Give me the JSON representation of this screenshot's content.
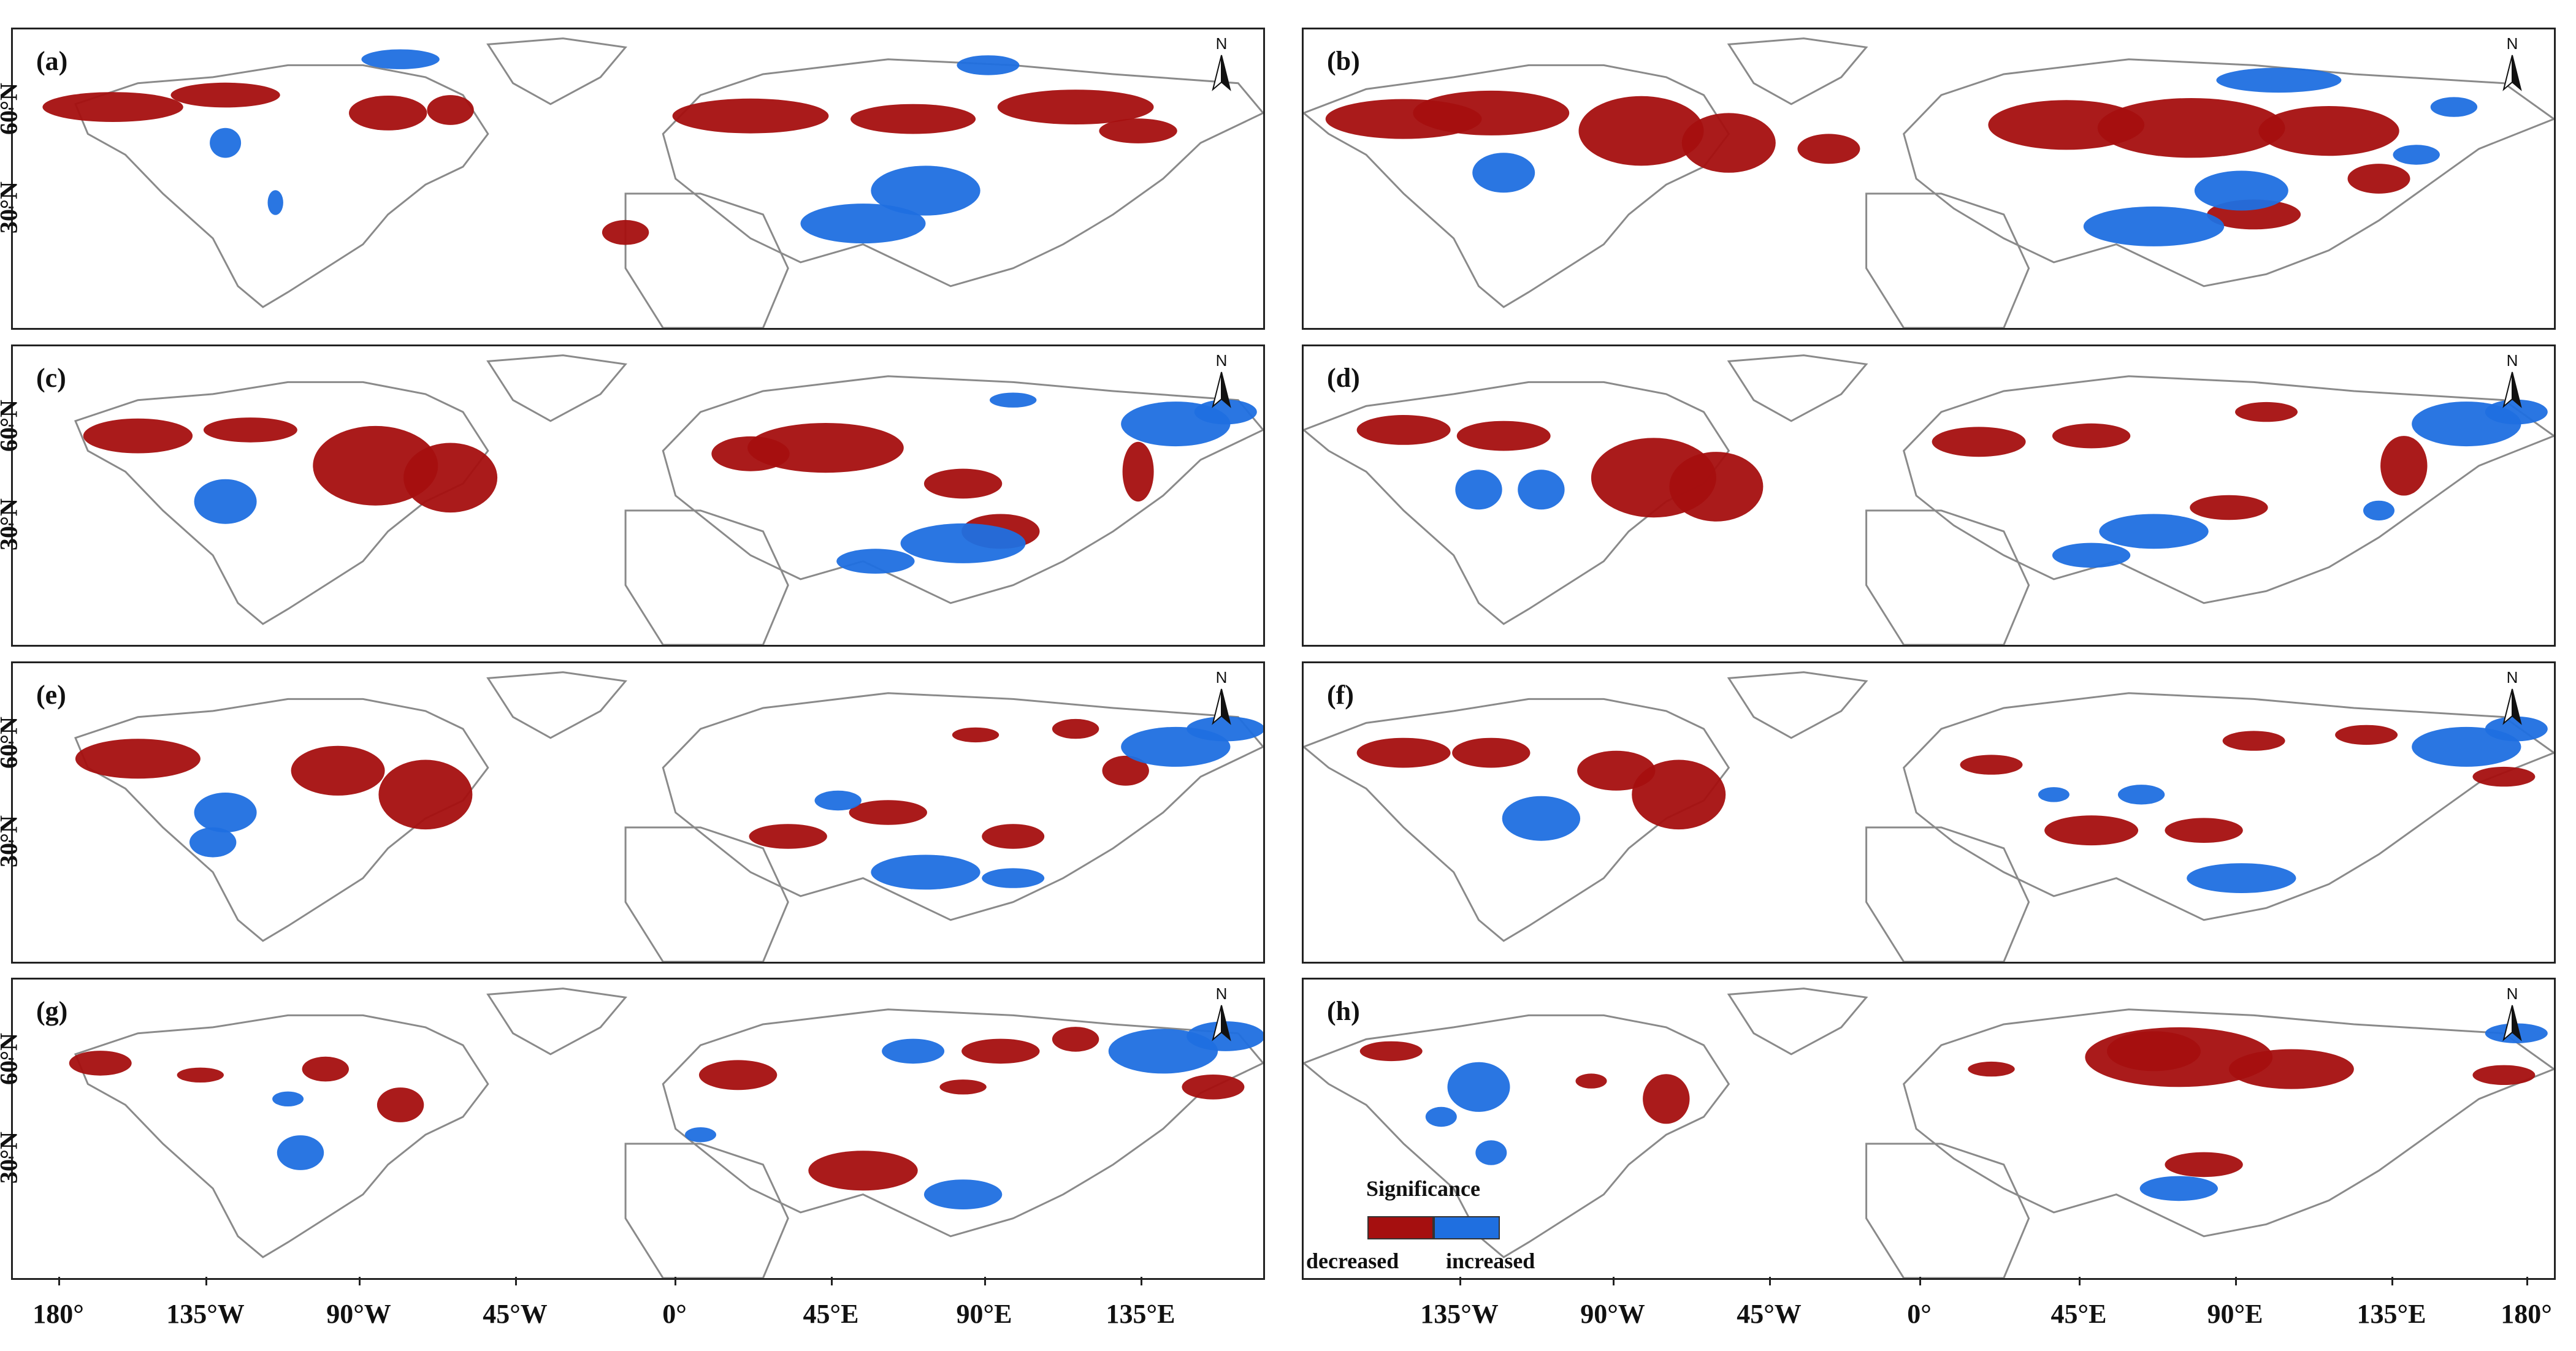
{
  "colors": {
    "decreased": "#a50f0f",
    "increased": "#1f6fe0",
    "coast": "#8a8a8a",
    "frame": "#222222"
  },
  "north_arrow": {
    "label": "N"
  },
  "y_axis_label": "60°N",
  "y_axis_labels": [
    "60°N",
    "30°N"
  ],
  "x_axis": {
    "left": [
      "180°",
      "135°W",
      "90°W",
      "45°W",
      "0°",
      "45°E",
      "90°E",
      "135°E"
    ],
    "right": [
      "135°W",
      "90°W",
      "45°W",
      "0°",
      "45°E",
      "90°E",
      "135°E",
      "180°"
    ]
  },
  "panels": [
    {
      "label": "(a)",
      "row": 0,
      "col": 0,
      "dec": [
        [
          0.08,
          0.26,
          0.09,
          0.06
        ],
        [
          0.17,
          0.22,
          0.07,
          0.05
        ],
        [
          0.3,
          0.28,
          0.05,
          0.07
        ],
        [
          0.35,
          0.27,
          0.03,
          0.06
        ],
        [
          0.59,
          0.29,
          0.1,
          0.07
        ],
        [
          0.72,
          0.3,
          0.08,
          0.06
        ],
        [
          0.85,
          0.26,
          0.1,
          0.07
        ],
        [
          0.9,
          0.34,
          0.05,
          0.05
        ],
        [
          0.49,
          0.68,
          0.03,
          0.05
        ]
      ],
      "inc": [
        [
          0.31,
          0.1,
          0.05,
          0.04
        ],
        [
          0.17,
          0.38,
          0.02,
          0.06
        ],
        [
          0.73,
          0.54,
          0.07,
          0.1
        ],
        [
          0.68,
          0.65,
          0.08,
          0.08
        ],
        [
          0.78,
          0.12,
          0.04,
          0.04
        ],
        [
          0.21,
          0.58,
          0.01,
          0.05
        ]
      ]
    },
    {
      "label": "(b)",
      "row": 0,
      "col": 1,
      "dec": [
        [
          0.08,
          0.3,
          0.1,
          0.08
        ],
        [
          0.15,
          0.28,
          0.1,
          0.09
        ],
        [
          0.27,
          0.34,
          0.08,
          0.14
        ],
        [
          0.34,
          0.38,
          0.06,
          0.12
        ],
        [
          0.61,
          0.32,
          0.1,
          0.1
        ],
        [
          0.71,
          0.33,
          0.12,
          0.12
        ],
        [
          0.82,
          0.34,
          0.09,
          0.1
        ],
        [
          0.86,
          0.5,
          0.04,
          0.06
        ],
        [
          0.76,
          0.62,
          0.06,
          0.06
        ],
        [
          0.42,
          0.4,
          0.04,
          0.06
        ]
      ],
      "inc": [
        [
          0.78,
          0.17,
          0.08,
          0.05
        ],
        [
          0.92,
          0.26,
          0.03,
          0.04
        ],
        [
          0.16,
          0.48,
          0.04,
          0.08
        ],
        [
          0.75,
          0.54,
          0.06,
          0.08
        ],
        [
          0.68,
          0.66,
          0.09,
          0.08
        ],
        [
          0.89,
          0.42,
          0.03,
          0.04
        ]
      ]
    },
    {
      "label": "(c)",
      "row": 1,
      "col": 0,
      "dec": [
        [
          0.1,
          0.3,
          0.07,
          0.07
        ],
        [
          0.19,
          0.28,
          0.06,
          0.05
        ],
        [
          0.29,
          0.4,
          0.08,
          0.16
        ],
        [
          0.35,
          0.44,
          0.06,
          0.14
        ],
        [
          0.65,
          0.34,
          0.1,
          0.1
        ],
        [
          0.59,
          0.36,
          0.05,
          0.07
        ],
        [
          0.76,
          0.46,
          0.05,
          0.06
        ],
        [
          0.79,
          0.62,
          0.05,
          0.07
        ],
        [
          0.9,
          0.42,
          0.02,
          0.12
        ]
      ],
      "inc": [
        [
          0.93,
          0.26,
          0.07,
          0.09
        ],
        [
          0.97,
          0.22,
          0.04,
          0.05
        ],
        [
          0.17,
          0.52,
          0.04,
          0.09
        ],
        [
          0.76,
          0.66,
          0.08,
          0.08
        ],
        [
          0.69,
          0.72,
          0.05,
          0.05
        ],
        [
          0.8,
          0.18,
          0.03,
          0.03
        ]
      ]
    },
    {
      "label": "(d)",
      "row": 1,
      "col": 1,
      "dec": [
        [
          0.08,
          0.28,
          0.06,
          0.06
        ],
        [
          0.16,
          0.3,
          0.06,
          0.06
        ],
        [
          0.28,
          0.44,
          0.08,
          0.16
        ],
        [
          0.33,
          0.47,
          0.06,
          0.14
        ],
        [
          0.54,
          0.32,
          0.06,
          0.06
        ],
        [
          0.63,
          0.3,
          0.05,
          0.05
        ],
        [
          0.77,
          0.22,
          0.04,
          0.04
        ],
        [
          0.88,
          0.4,
          0.03,
          0.12
        ],
        [
          0.74,
          0.54,
          0.05,
          0.05
        ]
      ],
      "inc": [
        [
          0.93,
          0.26,
          0.07,
          0.09
        ],
        [
          0.97,
          0.22,
          0.04,
          0.05
        ],
        [
          0.19,
          0.48,
          0.03,
          0.08
        ],
        [
          0.14,
          0.48,
          0.03,
          0.08
        ],
        [
          0.68,
          0.62,
          0.07,
          0.07
        ],
        [
          0.63,
          0.7,
          0.05,
          0.05
        ],
        [
          0.86,
          0.55,
          0.02,
          0.04
        ]
      ]
    },
    {
      "label": "(e)",
      "row": 2,
      "col": 0,
      "dec": [
        [
          0.1,
          0.32,
          0.08,
          0.08
        ],
        [
          0.26,
          0.36,
          0.06,
          0.1
        ],
        [
          0.33,
          0.44,
          0.06,
          0.14
        ],
        [
          0.77,
          0.24,
          0.03,
          0.03
        ],
        [
          0.85,
          0.22,
          0.03,
          0.04
        ],
        [
          0.89,
          0.36,
          0.03,
          0.06
        ],
        [
          0.7,
          0.5,
          0.05,
          0.05
        ],
        [
          0.62,
          0.58,
          0.05,
          0.05
        ],
        [
          0.8,
          0.58,
          0.04,
          0.05
        ]
      ],
      "inc": [
        [
          0.93,
          0.28,
          0.07,
          0.08
        ],
        [
          0.97,
          0.22,
          0.05,
          0.05
        ],
        [
          0.17,
          0.5,
          0.04,
          0.08
        ],
        [
          0.16,
          0.6,
          0.03,
          0.06
        ],
        [
          0.66,
          0.46,
          0.03,
          0.04
        ],
        [
          0.73,
          0.7,
          0.07,
          0.07
        ],
        [
          0.8,
          0.72,
          0.04,
          0.04
        ]
      ]
    },
    {
      "label": "(f)",
      "row": 2,
      "col": 1,
      "dec": [
        [
          0.08,
          0.3,
          0.06,
          0.06
        ],
        [
          0.15,
          0.3,
          0.05,
          0.06
        ],
        [
          0.25,
          0.36,
          0.05,
          0.08
        ],
        [
          0.3,
          0.44,
          0.06,
          0.14
        ],
        [
          0.55,
          0.34,
          0.04,
          0.04
        ],
        [
          0.76,
          0.26,
          0.04,
          0.04
        ],
        [
          0.85,
          0.24,
          0.04,
          0.04
        ],
        [
          0.96,
          0.38,
          0.04,
          0.04
        ],
        [
          0.63,
          0.56,
          0.06,
          0.06
        ],
        [
          0.72,
          0.56,
          0.05,
          0.05
        ]
      ],
      "inc": [
        [
          0.93,
          0.28,
          0.07,
          0.08
        ],
        [
          0.97,
          0.22,
          0.04,
          0.05
        ],
        [
          0.19,
          0.52,
          0.05,
          0.09
        ],
        [
          0.6,
          0.44,
          0.02,
          0.03
        ],
        [
          0.67,
          0.44,
          0.03,
          0.04
        ],
        [
          0.75,
          0.72,
          0.07,
          0.06
        ]
      ]
    },
    {
      "label": "(g)",
      "row": 3,
      "col": 0,
      "dec": [
        [
          0.07,
          0.28,
          0.04,
          0.05
        ],
        [
          0.15,
          0.32,
          0.03,
          0.03
        ],
        [
          0.25,
          0.3,
          0.03,
          0.05
        ],
        [
          0.31,
          0.42,
          0.03,
          0.07
        ],
        [
          0.58,
          0.32,
          0.05,
          0.06
        ],
        [
          0.79,
          0.24,
          0.05,
          0.05
        ],
        [
          0.85,
          0.2,
          0.03,
          0.05
        ],
        [
          0.96,
          0.36,
          0.04,
          0.05
        ],
        [
          0.68,
          0.64,
          0.07,
          0.08
        ],
        [
          0.76,
          0.36,
          0.03,
          0.03
        ]
      ],
      "inc": [
        [
          0.92,
          0.24,
          0.07,
          0.09
        ],
        [
          0.97,
          0.19,
          0.05,
          0.06
        ],
        [
          0.72,
          0.24,
          0.04,
          0.05
        ],
        [
          0.22,
          0.4,
          0.02,
          0.03
        ],
        [
          0.23,
          0.58,
          0.03,
          0.07
        ],
        [
          0.76,
          0.72,
          0.05,
          0.06
        ],
        [
          0.55,
          0.52,
          0.02,
          0.03
        ]
      ]
    },
    {
      "label": "(h)",
      "row": 3,
      "col": 1,
      "dec": [
        [
          0.07,
          0.24,
          0.04,
          0.04
        ],
        [
          0.23,
          0.34,
          0.02,
          0.03
        ],
        [
          0.29,
          0.4,
          0.03,
          0.1
        ],
        [
          0.7,
          0.26,
          0.12,
          0.12
        ],
        [
          0.68,
          0.24,
          0.06,
          0.08
        ],
        [
          0.79,
          0.3,
          0.08,
          0.08
        ],
        [
          0.96,
          0.32,
          0.04,
          0.04
        ],
        [
          0.55,
          0.3,
          0.03,
          0.03
        ],
        [
          0.72,
          0.62,
          0.05,
          0.05
        ]
      ],
      "inc": [
        [
          0.14,
          0.36,
          0.04,
          0.1
        ],
        [
          0.11,
          0.46,
          0.02,
          0.04
        ],
        [
          0.15,
          0.58,
          0.02,
          0.05
        ],
        [
          0.97,
          0.18,
          0.04,
          0.04
        ],
        [
          0.7,
          0.7,
          0.05,
          0.05
        ]
      ]
    }
  ],
  "legend": {
    "title": "Significance",
    "decreased_label": "decreased",
    "increased_label": "increased"
  }
}
